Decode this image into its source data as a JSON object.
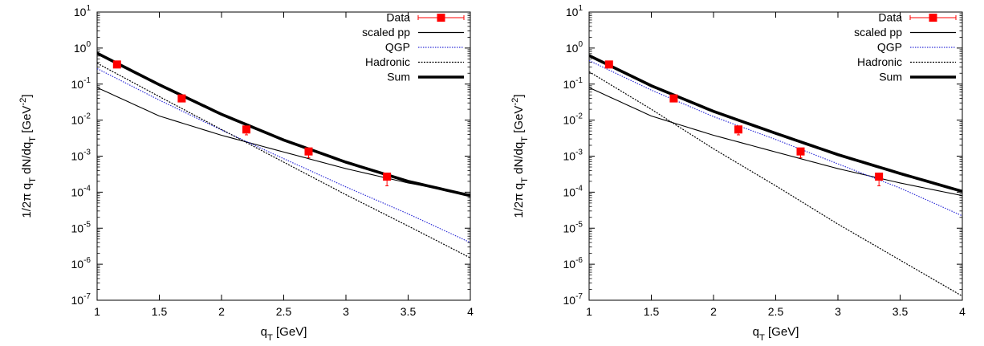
{
  "chart_data": [
    {
      "type": "line",
      "xlabel": "q_T [GeV]",
      "ylabel": "1/2π q_T dN/dq_T [GeV^-2]",
      "xlim": [
        1,
        4
      ],
      "ylim": [
        1e-07,
        10
      ],
      "yscale": "log",
      "grid": false,
      "legend_position": "top-right",
      "x_ticks": [
        "1",
        "1.5",
        "2",
        "2.5",
        "3",
        "3.5",
        "4"
      ],
      "y_ticks": [
        {
          "base": "10",
          "exp": "-7"
        },
        {
          "base": "10",
          "exp": "-6"
        },
        {
          "base": "10",
          "exp": "-5"
        },
        {
          "base": "10",
          "exp": "-4"
        },
        {
          "base": "10",
          "exp": "-3"
        },
        {
          "base": "10",
          "exp": "-2"
        },
        {
          "base": "10",
          "exp": "-1"
        },
        {
          "base": "10",
          "exp": "0"
        },
        {
          "base": "10",
          "exp": "1"
        }
      ],
      "data_points": {
        "name": "Data",
        "color": "#ff0000",
        "x": [
          1.16,
          1.68,
          2.2,
          2.7,
          3.33
        ],
        "y": [
          0.35,
          0.04,
          0.0055,
          0.00135,
          0.00027
        ],
        "err_low": [
          0.05,
          0.006,
          0.0016,
          0.00045,
          0.00012
        ],
        "err_high": [
          0.05,
          0.006,
          0.001,
          0.0003,
          8e-05
        ]
      },
      "series": [
        {
          "name": "scaled pp",
          "color": "#000000",
          "style": "thin",
          "x": [
            1,
            1.5,
            2,
            2.5,
            3,
            3.5,
            4
          ],
          "y": [
            0.08,
            0.013,
            0.0038,
            0.0013,
            0.00045,
            0.00018,
            8.5e-05
          ]
        },
        {
          "name": "QGP",
          "color": "#3030d8",
          "style": "dotted",
          "x": [
            1,
            1.5,
            2,
            2.5,
            3,
            3.5,
            4
          ],
          "y": [
            0.27,
            0.036,
            0.0053,
            0.00085,
            0.00014,
            2.5e-05,
            4e-06
          ]
        },
        {
          "name": "Hadronic",
          "color": "#000000",
          "style": "dashed",
          "x": [
            1,
            1.5,
            2,
            2.5,
            3,
            3.5,
            4
          ],
          "y": [
            0.38,
            0.045,
            0.0055,
            0.00068,
            8.5e-05,
            1.15e-05,
            1.5e-06
          ]
        },
        {
          "name": "Sum",
          "color": "#000000",
          "style": "thick",
          "x": [
            1,
            1.5,
            2,
            2.5,
            3,
            3.5,
            4
          ],
          "y": [
            0.72,
            0.096,
            0.0145,
            0.0028,
            0.00068,
            0.0002,
            8e-05
          ]
        }
      ]
    },
    {
      "type": "line",
      "xlabel": "q_T [GeV]",
      "ylabel": "1/2π q_T dN/dq_T [GeV^-2]",
      "xlim": [
        1,
        4
      ],
      "ylim": [
        1e-07,
        10
      ],
      "yscale": "log",
      "grid": false,
      "legend_position": "top-right",
      "x_ticks": [
        "1",
        "1.5",
        "2",
        "2.5",
        "3",
        "3.5",
        "4"
      ],
      "y_ticks": [
        {
          "base": "10",
          "exp": "-7"
        },
        {
          "base": "10",
          "exp": "-6"
        },
        {
          "base": "10",
          "exp": "-5"
        },
        {
          "base": "10",
          "exp": "-4"
        },
        {
          "base": "10",
          "exp": "-3"
        },
        {
          "base": "10",
          "exp": "-2"
        },
        {
          "base": "10",
          "exp": "-1"
        },
        {
          "base": "10",
          "exp": "0"
        },
        {
          "base": "10",
          "exp": "1"
        }
      ],
      "data_points": {
        "name": "Data",
        "color": "#ff0000",
        "x": [
          1.16,
          1.68,
          2.2,
          2.7,
          3.33
        ],
        "y": [
          0.35,
          0.04,
          0.0055,
          0.00135,
          0.00027
        ],
        "err_low": [
          0.05,
          0.006,
          0.0016,
          0.00045,
          0.00012
        ],
        "err_high": [
          0.05,
          0.006,
          0.001,
          0.0003,
          8e-05
        ]
      },
      "series": [
        {
          "name": "scaled pp",
          "color": "#000000",
          "style": "thin",
          "x": [
            1,
            1.5,
            2,
            2.5,
            3,
            3.5,
            4
          ],
          "y": [
            0.08,
            0.013,
            0.0038,
            0.0013,
            0.00045,
            0.00018,
            8e-05
          ]
        },
        {
          "name": "QGP",
          "color": "#3030d8",
          "style": "dotted",
          "x": [
            1,
            1.5,
            2,
            2.5,
            3,
            3.5,
            4
          ],
          "y": [
            0.45,
            0.068,
            0.0125,
            0.0029,
            0.00061,
            0.00013,
            2.2e-05
          ]
        },
        {
          "name": "Hadronic",
          "color": "#000000",
          "style": "dashed",
          "x": [
            1,
            1.5,
            2,
            2.5,
            3,
            3.5,
            4
          ],
          "y": [
            0.22,
            0.02,
            0.0016,
            0.00015,
            1.3e-05,
            1.3e-06,
            1.3e-07
          ]
        },
        {
          "name": "Sum",
          "color": "#000000",
          "style": "thick",
          "x": [
            1,
            1.5,
            2,
            2.5,
            3,
            3.5,
            4
          ],
          "y": [
            0.62,
            0.09,
            0.0175,
            0.0043,
            0.0011,
            0.00033,
            0.000105
          ]
        }
      ]
    }
  ]
}
